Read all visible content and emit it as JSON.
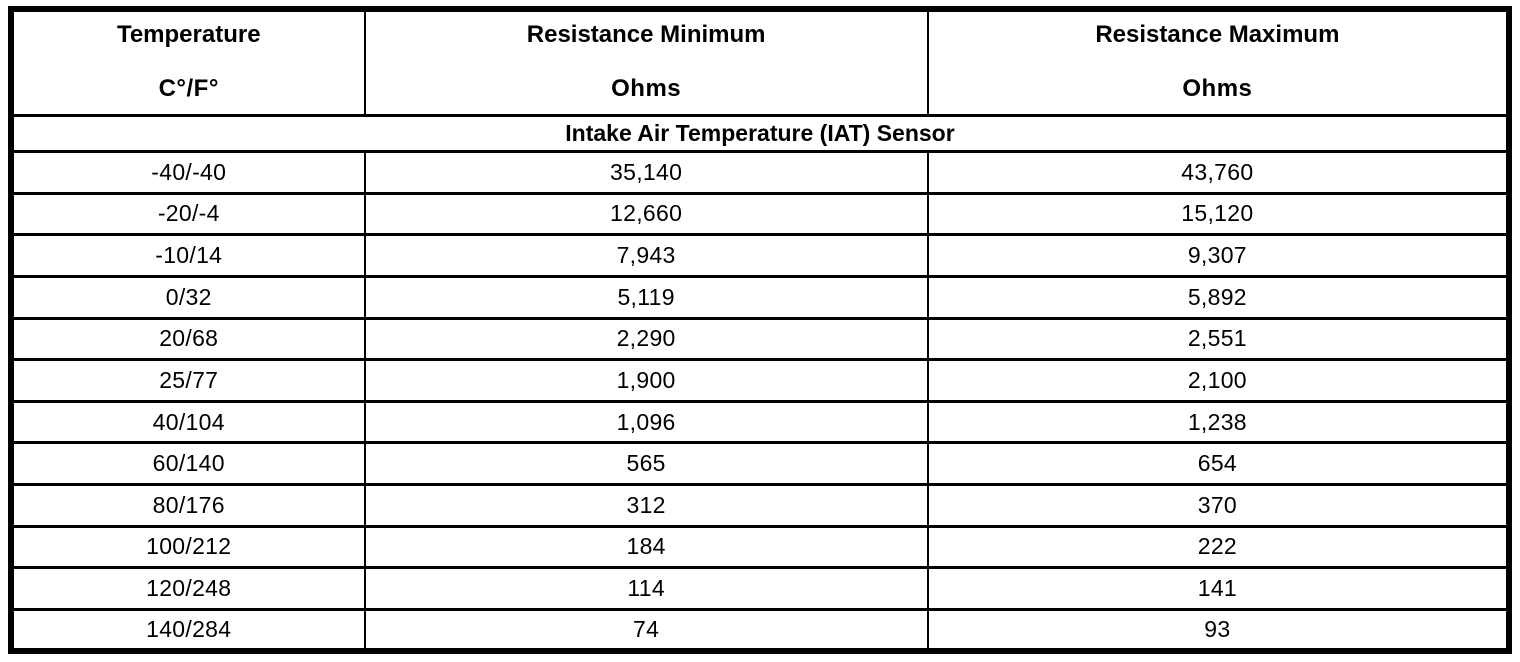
{
  "table": {
    "columns": [
      {
        "title": "Temperature",
        "subtitle": "C°/F°"
      },
      {
        "title": "Resistance Minimum",
        "subtitle": "Ohms"
      },
      {
        "title": "Resistance Maximum",
        "subtitle": "Ohms"
      }
    ],
    "section_title": "Intake Air Temperature (IAT) Sensor",
    "rows": [
      {
        "temperature": "-40/-40",
        "min": "35,140",
        "max": "43,760"
      },
      {
        "temperature": "-20/-4",
        "min": "12,660",
        "max": "15,120"
      },
      {
        "temperature": "-10/14",
        "min": "7,943",
        "max": "9,307"
      },
      {
        "temperature": "0/32",
        "min": "5,119",
        "max": "5,892"
      },
      {
        "temperature": "20/68",
        "min": "2,290",
        "max": "2,551"
      },
      {
        "temperature": "25/77",
        "min": "1,900",
        "max": "2,100"
      },
      {
        "temperature": "40/104",
        "min": "1,096",
        "max": "1,238"
      },
      {
        "temperature": "60/140",
        "min": "565",
        "max": "654"
      },
      {
        "temperature": "80/176",
        "min": "312",
        "max": "370"
      },
      {
        "temperature": "100/212",
        "min": "184",
        "max": "222"
      },
      {
        "temperature": "120/248",
        "min": "114",
        "max": "141"
      },
      {
        "temperature": "140/284",
        "min": "74",
        "max": "93"
      }
    ]
  },
  "colors": {
    "border": "#000000",
    "background": "#ffffff",
    "text": "#000000"
  }
}
